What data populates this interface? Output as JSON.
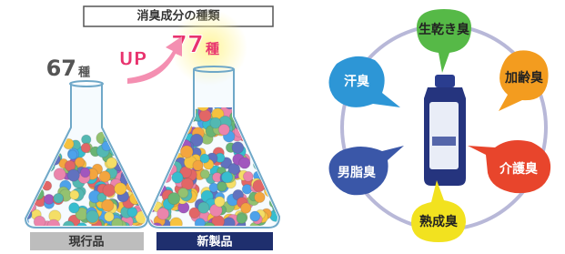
{
  "title": "消臭成分の種類",
  "current": {
    "count": 67,
    "unit": "種",
    "label": "現行品"
  },
  "new": {
    "count": 77,
    "unit": "種",
    "label": "新製品"
  },
  "up": "UP",
  "odors": [
    "生乾き臭",
    "加齢臭",
    "介護臭",
    "熟成臭",
    "男脂臭",
    "汗臭"
  ]
}
